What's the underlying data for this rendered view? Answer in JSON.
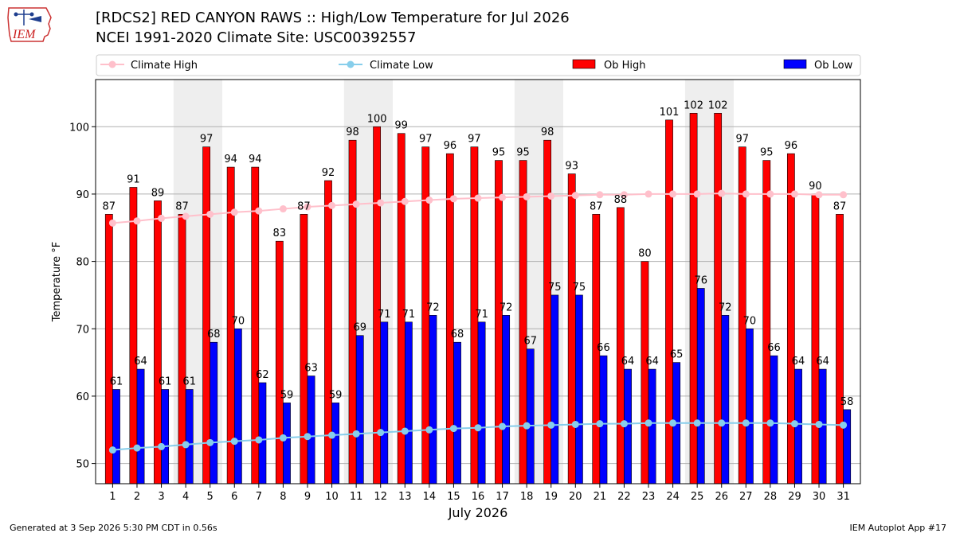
{
  "header": {
    "title_line1": "[RDCS2] RED CANYON RAWS :: High/Low Temperature for Jul 2026",
    "title_line2": "NCEI 1991-2020 Climate Site: USC00392557",
    "logo_text": "IEM"
  },
  "footer": {
    "generated": "Generated at 3 Sep 2026 5:30 PM CDT in 0.56s",
    "app": "IEM Autoplot App #17"
  },
  "colors": {
    "ob_high": "#ff0000",
    "ob_low": "#0000ff",
    "climate_high": "#ffc0cb",
    "climate_low": "#87ceeb",
    "weekend_shade": "#eeeeee",
    "gridline": "#b0b0b0"
  },
  "chart_data": {
    "type": "bar",
    "xlabel": "July 2026",
    "ylabel": "Temperature °F",
    "ylim": [
      47,
      107
    ],
    "yticks": [
      50,
      60,
      70,
      80,
      90,
      100
    ],
    "grid": "horizontal",
    "legend_position": "top",
    "categories": [
      "1",
      "2",
      "3",
      "4",
      "5",
      "6",
      "7",
      "8",
      "9",
      "10",
      "11",
      "12",
      "13",
      "14",
      "15",
      "16",
      "17",
      "18",
      "19",
      "20",
      "21",
      "22",
      "23",
      "24",
      "25",
      "26",
      "27",
      "28",
      "29",
      "30",
      "31"
    ],
    "shaded_days": [
      [
        4,
        5
      ],
      [
        11,
        12
      ],
      [
        18,
        19
      ],
      [
        25,
        26
      ]
    ],
    "series": [
      {
        "name": "Climate High",
        "kind": "line",
        "values": [
          85.7,
          86.0,
          86.4,
          86.7,
          87.0,
          87.3,
          87.5,
          87.8,
          88.1,
          88.3,
          88.5,
          88.7,
          88.9,
          89.1,
          89.3,
          89.4,
          89.5,
          89.6,
          89.7,
          89.8,
          89.9,
          89.9,
          90.0,
          90.0,
          90.0,
          90.1,
          90.0,
          90.0,
          90.0,
          89.9,
          89.9
        ]
      },
      {
        "name": "Climate Low",
        "kind": "line",
        "values": [
          52.0,
          52.3,
          52.5,
          52.8,
          53.1,
          53.3,
          53.5,
          53.8,
          54.0,
          54.2,
          54.4,
          54.6,
          54.8,
          55.0,
          55.2,
          55.3,
          55.5,
          55.6,
          55.7,
          55.8,
          55.9,
          55.9,
          56.0,
          56.0,
          56.0,
          56.0,
          56.0,
          56.0,
          55.9,
          55.8,
          55.7
        ]
      },
      {
        "name": "Ob High",
        "kind": "bar",
        "values": [
          87,
          91,
          89,
          87,
          97,
          94,
          94,
          83,
          87,
          92,
          98,
          100,
          99,
          97,
          96,
          97,
          95,
          95,
          98,
          93,
          87,
          88,
          80,
          101,
          102,
          102,
          97,
          95,
          96,
          90,
          87
        ]
      },
      {
        "name": "Ob Low",
        "kind": "bar",
        "values": [
          61,
          64,
          61,
          61,
          68,
          70,
          62,
          59,
          63,
          59,
          69,
          71,
          71,
          72,
          68,
          71,
          72,
          67,
          75,
          75,
          66,
          64,
          64,
          65,
          76,
          72,
          70,
          66,
          64,
          64,
          58
        ]
      }
    ]
  }
}
